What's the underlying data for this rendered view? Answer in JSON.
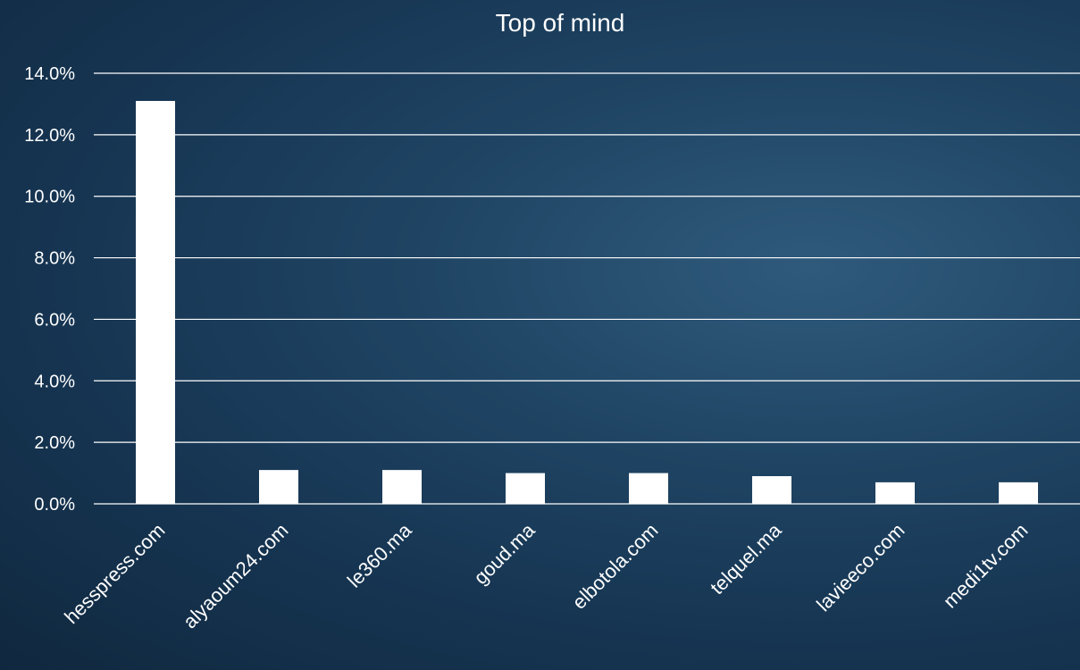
{
  "chart_data": {
    "type": "bar",
    "title": "Top of mind",
    "xlabel": "",
    "ylabel": "",
    "categories": [
      "hesspress.com",
      "alyaoum24.com",
      "le360.ma",
      "goud.ma",
      "elbotola.com",
      "telquel.ma",
      "lavieeco.com",
      "medi1tv.com"
    ],
    "values": [
      13.1,
      1.1,
      1.1,
      1.0,
      1.0,
      0.9,
      0.7,
      0.7
    ],
    "ylim": [
      0,
      14
    ],
    "yticks": [
      "0.0%",
      "2.0%",
      "4.0%",
      "6.0%",
      "8.0%",
      "10.0%",
      "12.0%",
      "14.0%"
    ],
    "grid": true,
    "legend": "none",
    "colors": {
      "bar": "#ffffff",
      "grid": "#ffffff",
      "text": "#ffffff"
    }
  }
}
